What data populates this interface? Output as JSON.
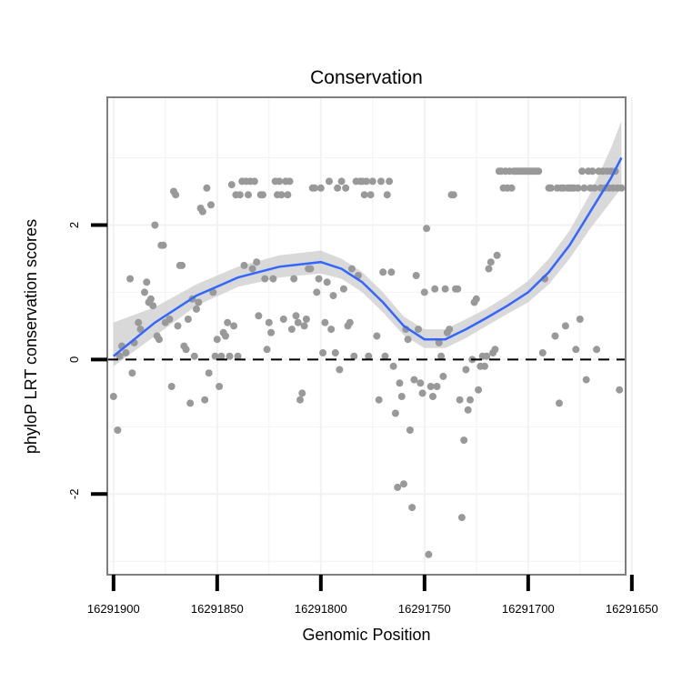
{
  "chart_data": {
    "type": "scatter",
    "title": "Conservation",
    "xlabel": "Genomic Position",
    "ylabel": "phyloP LRT conservation scores",
    "x_reversed": true,
    "xlim": [
      16291903,
      16291653
    ],
    "ylim": [
      -3.2,
      3.9
    ],
    "x_ticks": [
      16291900,
      16291850,
      16291800,
      16291750,
      16291700,
      16291650
    ],
    "x_tick_labels": [
      "16291900",
      "16291850",
      "16291800",
      "16291750",
      "16291700",
      "16291650"
    ],
    "y_ticks": [
      -2,
      0,
      2
    ],
    "y_tick_labels": [
      "-2",
      "0",
      "2"
    ],
    "reference_line": {
      "y": 0,
      "style": "dashed"
    },
    "grid": true,
    "colors": {
      "points": "#999999",
      "smooth_line": "#3366ff",
      "confidence_band": "#cccccc",
      "panel_border": "#7f7f7f",
      "grid": "#f2f2f2"
    },
    "points": [
      {
        "x": 16291900,
        "y": -0.55
      },
      {
        "x": 16291898,
        "y": -1.05
      },
      {
        "x": 16291897,
        "y": 0.05
      },
      {
        "x": 16291896,
        "y": 0.2
      },
      {
        "x": 16291894,
        "y": 0.1
      },
      {
        "x": 16291892,
        "y": 1.2
      },
      {
        "x": 16291891,
        "y": -0.2
      },
      {
        "x": 16291890,
        "y": 0.25
      },
      {
        "x": 16291888,
        "y": 0.55
      },
      {
        "x": 16291887,
        "y": 0.45
      },
      {
        "x": 16291885,
        "y": 1.0
      },
      {
        "x": 16291884,
        "y": 1.15
      },
      {
        "x": 16291883,
        "y": 0.85
      },
      {
        "x": 16291882,
        "y": 0.9
      },
      {
        "x": 16291881,
        "y": 0.8
      },
      {
        "x": 16291880,
        "y": 2.0
      },
      {
        "x": 16291879,
        "y": 0.35
      },
      {
        "x": 16291878,
        "y": 0.3
      },
      {
        "x": 16291877,
        "y": 1.7
      },
      {
        "x": 16291876,
        "y": 1.7
      },
      {
        "x": 16291875,
        "y": 0.55
      },
      {
        "x": 16291873,
        "y": 0.6
      },
      {
        "x": 16291872,
        "y": -0.4
      },
      {
        "x": 16291871,
        "y": 2.5
      },
      {
        "x": 16291870,
        "y": 2.45
      },
      {
        "x": 16291869,
        "y": 0.5
      },
      {
        "x": 16291868,
        "y": 1.4
      },
      {
        "x": 16291867,
        "y": 1.4
      },
      {
        "x": 16291866,
        "y": 0.2
      },
      {
        "x": 16291865,
        "y": 0.15
      },
      {
        "x": 16291864,
        "y": 0.6
      },
      {
        "x": 16291863,
        "y": -0.65
      },
      {
        "x": 16291862,
        "y": 0.9
      },
      {
        "x": 16291861,
        "y": 0.05
      },
      {
        "x": 16291860,
        "y": 0.75
      },
      {
        "x": 16291859,
        "y": 0.85
      },
      {
        "x": 16291858,
        "y": 2.25
      },
      {
        "x": 16291857,
        "y": 2.2
      },
      {
        "x": 16291856,
        "y": -0.6
      },
      {
        "x": 16291855,
        "y": 2.55
      },
      {
        "x": 16291854,
        "y": -0.2
      },
      {
        "x": 16291853,
        "y": 2.3
      },
      {
        "x": 16291852,
        "y": 1.0
      },
      {
        "x": 16291851,
        "y": 0.05
      },
      {
        "x": 16291850,
        "y": 0.3
      },
      {
        "x": 16291849,
        "y": -0.4
      },
      {
        "x": 16291848,
        "y": 0.05
      },
      {
        "x": 16291847,
        "y": 0.4
      },
      {
        "x": 16291846,
        "y": 0.35
      },
      {
        "x": 16291845,
        "y": 0.55
      },
      {
        "x": 16291844,
        "y": 0.05
      },
      {
        "x": 16291843,
        "y": 2.6
      },
      {
        "x": 16291842,
        "y": 0.5
      },
      {
        "x": 16291841,
        "y": 2.45
      },
      {
        "x": 16291840,
        "y": 0.05
      },
      {
        "x": 16291839,
        "y": 2.45
      },
      {
        "x": 16291838,
        "y": 2.65
      },
      {
        "x": 16291837,
        "y": 1.4
      },
      {
        "x": 16291836,
        "y": 2.65
      },
      {
        "x": 16291835,
        "y": 2.45
      },
      {
        "x": 16291834,
        "y": 2.65
      },
      {
        "x": 16291833,
        "y": 1.35
      },
      {
        "x": 16291832,
        "y": 2.65
      },
      {
        "x": 16291831,
        "y": 1.45
      },
      {
        "x": 16291830,
        "y": 0.65
      },
      {
        "x": 16291829,
        "y": 2.45
      },
      {
        "x": 16291828,
        "y": 2.45
      },
      {
        "x": 16291827,
        "y": 1.2
      },
      {
        "x": 16291826,
        "y": 0.15
      },
      {
        "x": 16291825,
        "y": 0.55
      },
      {
        "x": 16291824,
        "y": 0.4
      },
      {
        "x": 16291823,
        "y": 1.2
      },
      {
        "x": 16291822,
        "y": 2.65
      },
      {
        "x": 16291821,
        "y": 2.45
      },
      {
        "x": 16291820,
        "y": 2.65
      },
      {
        "x": 16291819,
        "y": 2.45
      },
      {
        "x": 16291818,
        "y": 0.6
      },
      {
        "x": 16291817,
        "y": 2.65
      },
      {
        "x": 16291816,
        "y": 2.45
      },
      {
        "x": 16291815,
        "y": 2.65
      },
      {
        "x": 16291814,
        "y": 0.45
      },
      {
        "x": 16291813,
        "y": 1.2
      },
      {
        "x": 16291812,
        "y": 0.65
      },
      {
        "x": 16291811,
        "y": 0.55
      },
      {
        "x": 16291810,
        "y": -0.6
      },
      {
        "x": 16291809,
        "y": -0.5
      },
      {
        "x": 16291808,
        "y": 0.5
      },
      {
        "x": 16291807,
        "y": 0.6
      },
      {
        "x": 16291806,
        "y": 1.35
      },
      {
        "x": 16291805,
        "y": 1.35
      },
      {
        "x": 16291804,
        "y": 2.55
      },
      {
        "x": 16291803,
        "y": 2.55
      },
      {
        "x": 16291802,
        "y": 1.0
      },
      {
        "x": 16291801,
        "y": 1.2
      },
      {
        "x": 16291800,
        "y": 2.55
      },
      {
        "x": 16291799,
        "y": 0.1
      },
      {
        "x": 16291798,
        "y": 0.55
      },
      {
        "x": 16291797,
        "y": 1.15
      },
      {
        "x": 16291796,
        "y": 2.65
      },
      {
        "x": 16291795,
        "y": 0.45
      },
      {
        "x": 16291794,
        "y": 0.95
      },
      {
        "x": 16291793,
        "y": 0.1
      },
      {
        "x": 16291792,
        "y": 2.55
      },
      {
        "x": 16291791,
        "y": -0.15
      },
      {
        "x": 16291790,
        "y": 2.65
      },
      {
        "x": 16291789,
        "y": 1.05
      },
      {
        "x": 16291788,
        "y": 2.55
      },
      {
        "x": 16291787,
        "y": 0.5
      },
      {
        "x": 16291786,
        "y": 0.55
      },
      {
        "x": 16291785,
        "y": 1.35
      },
      {
        "x": 16291784,
        "y": 0.05
      },
      {
        "x": 16291783,
        "y": 2.65
      },
      {
        "x": 16291782,
        "y": 1.25
      },
      {
        "x": 16291781,
        "y": 2.65
      },
      {
        "x": 16291780,
        "y": 2.65
      },
      {
        "x": 16291779,
        "y": 2.45
      },
      {
        "x": 16291778,
        "y": 2.65
      },
      {
        "x": 16291777,
        "y": 0.05
      },
      {
        "x": 16291776,
        "y": 2.45
      },
      {
        "x": 16291775,
        "y": 2.65
      },
      {
        "x": 16291773,
        "y": 0.35
      },
      {
        "x": 16291772,
        "y": -0.6
      },
      {
        "x": 16291771,
        "y": 2.65
      },
      {
        "x": 16291770,
        "y": 1.3
      },
      {
        "x": 16291769,
        "y": 0.05
      },
      {
        "x": 16291768,
        "y": 2.45
      },
      {
        "x": 16291767,
        "y": 2.65
      },
      {
        "x": 16291766,
        "y": 1.3
      },
      {
        "x": 16291765,
        "y": -0.1
      },
      {
        "x": 16291764,
        "y": -0.8
      },
      {
        "x": 16291763,
        "y": -1.9
      },
      {
        "x": 16291762,
        "y": -0.35
      },
      {
        "x": 16291761,
        "y": -0.55
      },
      {
        "x": 16291760,
        "y": -1.85
      },
      {
        "x": 16291759,
        "y": 0.45
      },
      {
        "x": 16291758,
        "y": 0.3
      },
      {
        "x": 16291757,
        "y": -1.05
      },
      {
        "x": 16291756,
        "y": -2.2
      },
      {
        "x": 16291755,
        "y": -0.3
      },
      {
        "x": 16291754,
        "y": 1.25
      },
      {
        "x": 16291753,
        "y": 0.45
      },
      {
        "x": 16291752,
        "y": -0.35
      },
      {
        "x": 16291751,
        "y": -0.5
      },
      {
        "x": 16291750,
        "y": 1.0
      },
      {
        "x": 16291749,
        "y": 1.95
      },
      {
        "x": 16291748,
        "y": -2.9
      },
      {
        "x": 16291747,
        "y": -0.4
      },
      {
        "x": 16291746,
        "y": -0.55
      },
      {
        "x": 16291745,
        "y": 1.05
      },
      {
        "x": 16291744,
        "y": -0.4
      },
      {
        "x": 16291743,
        "y": 0.25
      },
      {
        "x": 16291742,
        "y": 0.05
      },
      {
        "x": 16291741,
        "y": -0.25
      },
      {
        "x": 16291740,
        "y": 1.05
      },
      {
        "x": 16291739,
        "y": 0.4
      },
      {
        "x": 16291738,
        "y": 0.45
      },
      {
        "x": 16291737,
        "y": 2.45
      },
      {
        "x": 16291736,
        "y": 2.45
      },
      {
        "x": 16291735,
        "y": 1.05
      },
      {
        "x": 16291734,
        "y": 1.05
      },
      {
        "x": 16291733,
        "y": -0.6
      },
      {
        "x": 16291732,
        "y": -2.35
      },
      {
        "x": 16291731,
        "y": -1.2
      },
      {
        "x": 16291730,
        "y": -0.15
      },
      {
        "x": 16291729,
        "y": -0.75
      },
      {
        "x": 16291728,
        "y": -0.6
      },
      {
        "x": 16291727,
        "y": 0.0
      },
      {
        "x": 16291726,
        "y": 0.85
      },
      {
        "x": 16291725,
        "y": 0.9
      },
      {
        "x": 16291724,
        "y": -0.45
      },
      {
        "x": 16291723,
        "y": -0.1
      },
      {
        "x": 16291722,
        "y": 0.05
      },
      {
        "x": 16291721,
        "y": -0.1
      },
      {
        "x": 16291720,
        "y": 0.05
      },
      {
        "x": 16291719,
        "y": 1.35
      },
      {
        "x": 16291718,
        "y": 1.45
      },
      {
        "x": 16291717,
        "y": 0.1
      },
      {
        "x": 16291716,
        "y": 0.15
      },
      {
        "x": 16291715,
        "y": 1.55
      },
      {
        "x": 16291714,
        "y": 2.8
      },
      {
        "x": 16291713,
        "y": 2.8
      },
      {
        "x": 16291712,
        "y": 2.55
      },
      {
        "x": 16291711,
        "y": 2.8
      },
      {
        "x": 16291710,
        "y": 2.55
      },
      {
        "x": 16291709,
        "y": 2.8
      },
      {
        "x": 16291708,
        "y": 2.55
      },
      {
        "x": 16291707,
        "y": 2.8
      },
      {
        "x": 16291706,
        "y": 2.8
      },
      {
        "x": 16291705,
        "y": 2.8
      },
      {
        "x": 16291704,
        "y": 2.8
      },
      {
        "x": 16291703,
        "y": 2.8
      },
      {
        "x": 16291702,
        "y": 2.8
      },
      {
        "x": 16291701,
        "y": 2.8
      },
      {
        "x": 16291700,
        "y": 2.8
      },
      {
        "x": 16291699,
        "y": 2.8
      },
      {
        "x": 16291698,
        "y": 2.8
      },
      {
        "x": 16291697,
        "y": 2.8
      },
      {
        "x": 16291696,
        "y": 2.8
      },
      {
        "x": 16291695,
        "y": 2.8
      },
      {
        "x": 16291693,
        "y": 0.1
      },
      {
        "x": 16291692,
        "y": 1.2
      },
      {
        "x": 16291690,
        "y": 2.55
      },
      {
        "x": 16291689,
        "y": 2.55
      },
      {
        "x": 16291687,
        "y": 0.35
      },
      {
        "x": 16291686,
        "y": 2.55
      },
      {
        "x": 16291685,
        "y": -0.65
      },
      {
        "x": 16291684,
        "y": 2.55
      },
      {
        "x": 16291683,
        "y": 2.55
      },
      {
        "x": 16291682,
        "y": 0.5
      },
      {
        "x": 16291681,
        "y": 2.55
      },
      {
        "x": 16291680,
        "y": 2.55
      },
      {
        "x": 16291679,
        "y": 2.55
      },
      {
        "x": 16291678,
        "y": 2.55
      },
      {
        "x": 16291677,
        "y": 0.15
      },
      {
        "x": 16291676,
        "y": 2.55
      },
      {
        "x": 16291675,
        "y": 0.6
      },
      {
        "x": 16291674,
        "y": 2.8
      },
      {
        "x": 16291673,
        "y": 2.55
      },
      {
        "x": 16291672,
        "y": -0.3
      },
      {
        "x": 16291671,
        "y": 2.8
      },
      {
        "x": 16291670,
        "y": 2.55
      },
      {
        "x": 16291669,
        "y": 2.8
      },
      {
        "x": 16291668,
        "y": 2.55
      },
      {
        "x": 16291667,
        "y": 0.15
      },
      {
        "x": 16291666,
        "y": 2.8
      },
      {
        "x": 16291665,
        "y": 2.55
      },
      {
        "x": 16291664,
        "y": 2.8
      },
      {
        "x": 16291663,
        "y": 2.55
      },
      {
        "x": 16291662,
        "y": 2.8
      },
      {
        "x": 16291661,
        "y": 2.55
      },
      {
        "x": 16291660,
        "y": 2.8
      },
      {
        "x": 16291659,
        "y": 2.55
      },
      {
        "x": 16291658,
        "y": 2.8
      },
      {
        "x": 16291657,
        "y": 2.55
      },
      {
        "x": 16291656,
        "y": -0.45
      },
      {
        "x": 16291655,
        "y": 2.55
      }
    ],
    "smooth": {
      "x": [
        16291900,
        16291880,
        16291860,
        16291840,
        16291820,
        16291800,
        16291790,
        16291780,
        16291770,
        16291760,
        16291750,
        16291740,
        16291730,
        16291720,
        16291710,
        16291700,
        16291690,
        16291680,
        16291670,
        16291660,
        16291655
      ],
      "y": [
        0.05,
        0.55,
        0.95,
        1.22,
        1.38,
        1.45,
        1.35,
        1.15,
        0.85,
        0.5,
        0.3,
        0.3,
        0.45,
        0.62,
        0.8,
        1.0,
        1.3,
        1.7,
        2.2,
        2.7,
        3.0
      ],
      "lower": [
        -0.1,
        0.35,
        0.8,
        1.08,
        1.22,
        1.28,
        1.2,
        1.0,
        0.7,
        0.36,
        0.17,
        0.17,
        0.32,
        0.5,
        0.68,
        0.85,
        1.12,
        1.5,
        1.95,
        2.35,
        2.55
      ],
      "upper": [
        0.55,
        0.78,
        1.12,
        1.38,
        1.55,
        1.62,
        1.5,
        1.3,
        1.0,
        0.64,
        0.45,
        0.45,
        0.6,
        0.76,
        0.95,
        1.17,
        1.5,
        1.92,
        2.47,
        3.15,
        3.55
      ]
    }
  }
}
